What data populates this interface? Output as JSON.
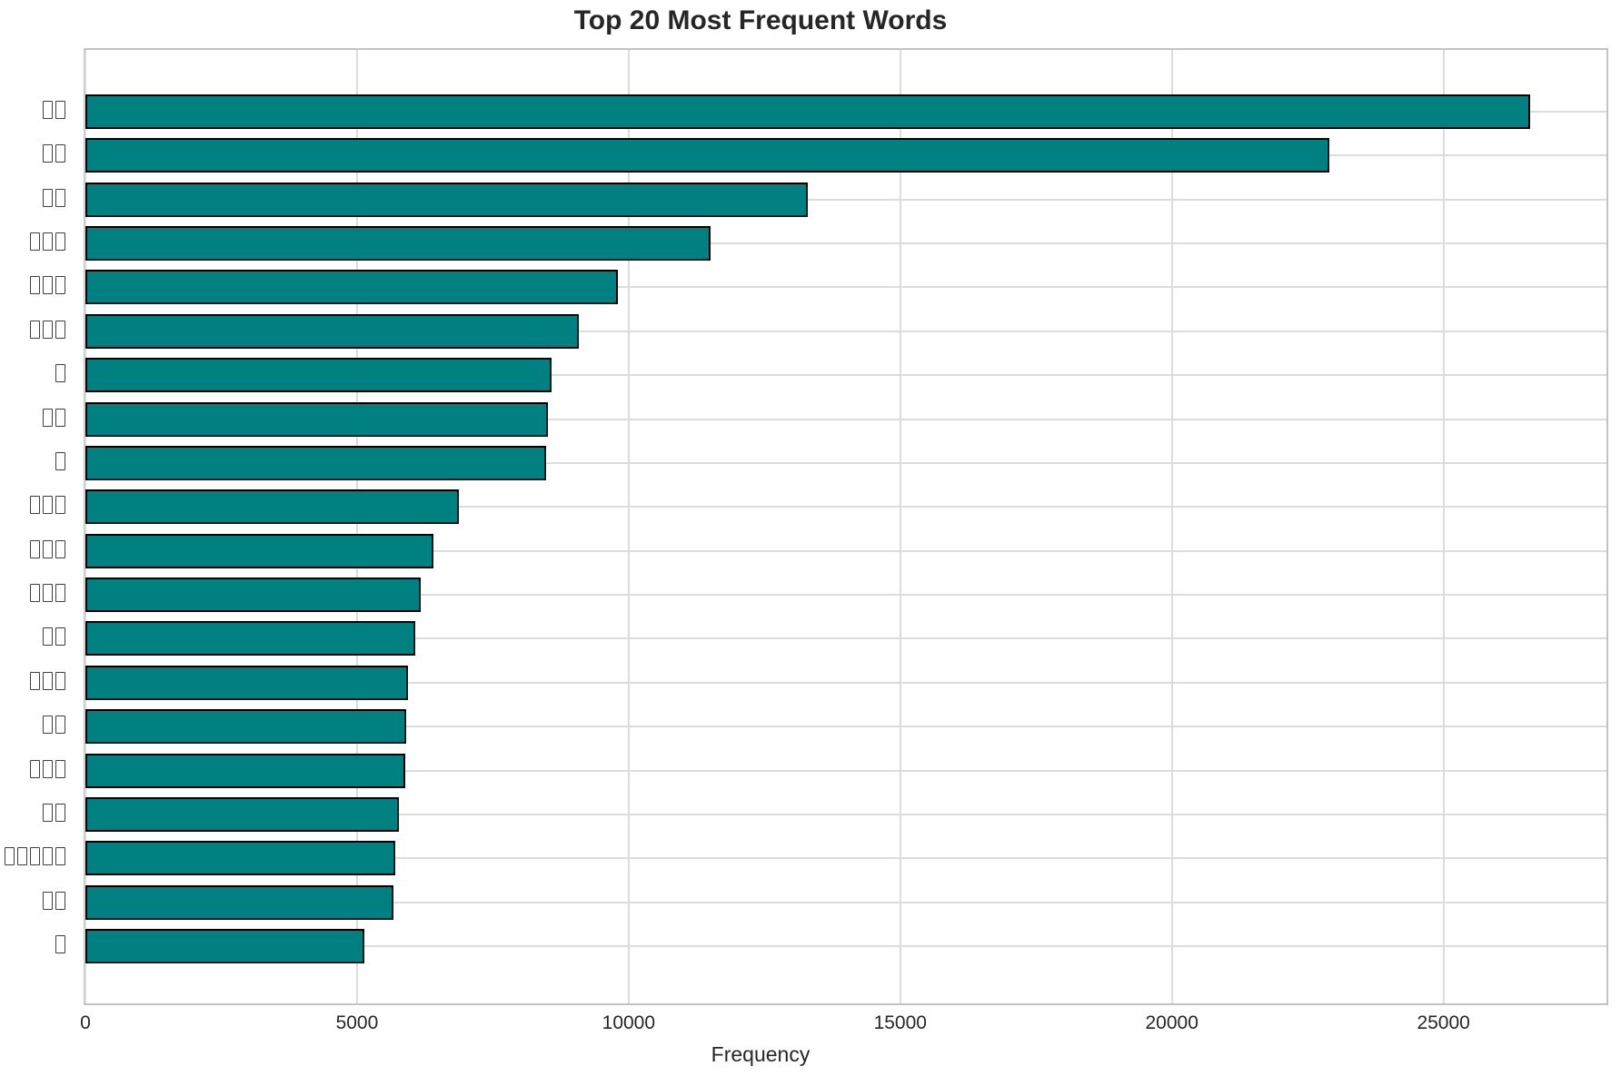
{
  "chart_data": {
    "type": "bar",
    "orientation": "horizontal",
    "title": "Top 20 Most Frequent Words",
    "xlabel": "Frequency",
    "ylabel": "",
    "categories": [
      "□□",
      "□□",
      "□□",
      "□□□",
      "□□□",
      "□□□",
      "□",
      "□□",
      "□",
      "□□□",
      "□□□",
      "□□□",
      "□□",
      "□□□",
      "□□",
      "□□□",
      "□□",
      "□□□□□",
      "□□",
      "□"
    ],
    "values": [
      26600,
      22900,
      13300,
      11500,
      9800,
      9080,
      8580,
      8520,
      8480,
      6870,
      6400,
      6170,
      6080,
      5930,
      5900,
      5880,
      5770,
      5700,
      5670,
      5130
    ],
    "xlim": [
      0,
      28000
    ],
    "xticks": [
      0,
      5000,
      10000,
      15000,
      20000,
      25000
    ],
    "xtick_labels": [
      "0",
      "5000",
      "10000",
      "15000",
      "20000",
      "25000"
    ],
    "grid": true,
    "legend_position": "none",
    "colors": {
      "bar_fill": "#008080",
      "bar_edge": "#000000",
      "grid": "#dcdcdc",
      "spine": "#c2c2c2",
      "text": "#262626",
      "background": "#ffffff"
    }
  }
}
